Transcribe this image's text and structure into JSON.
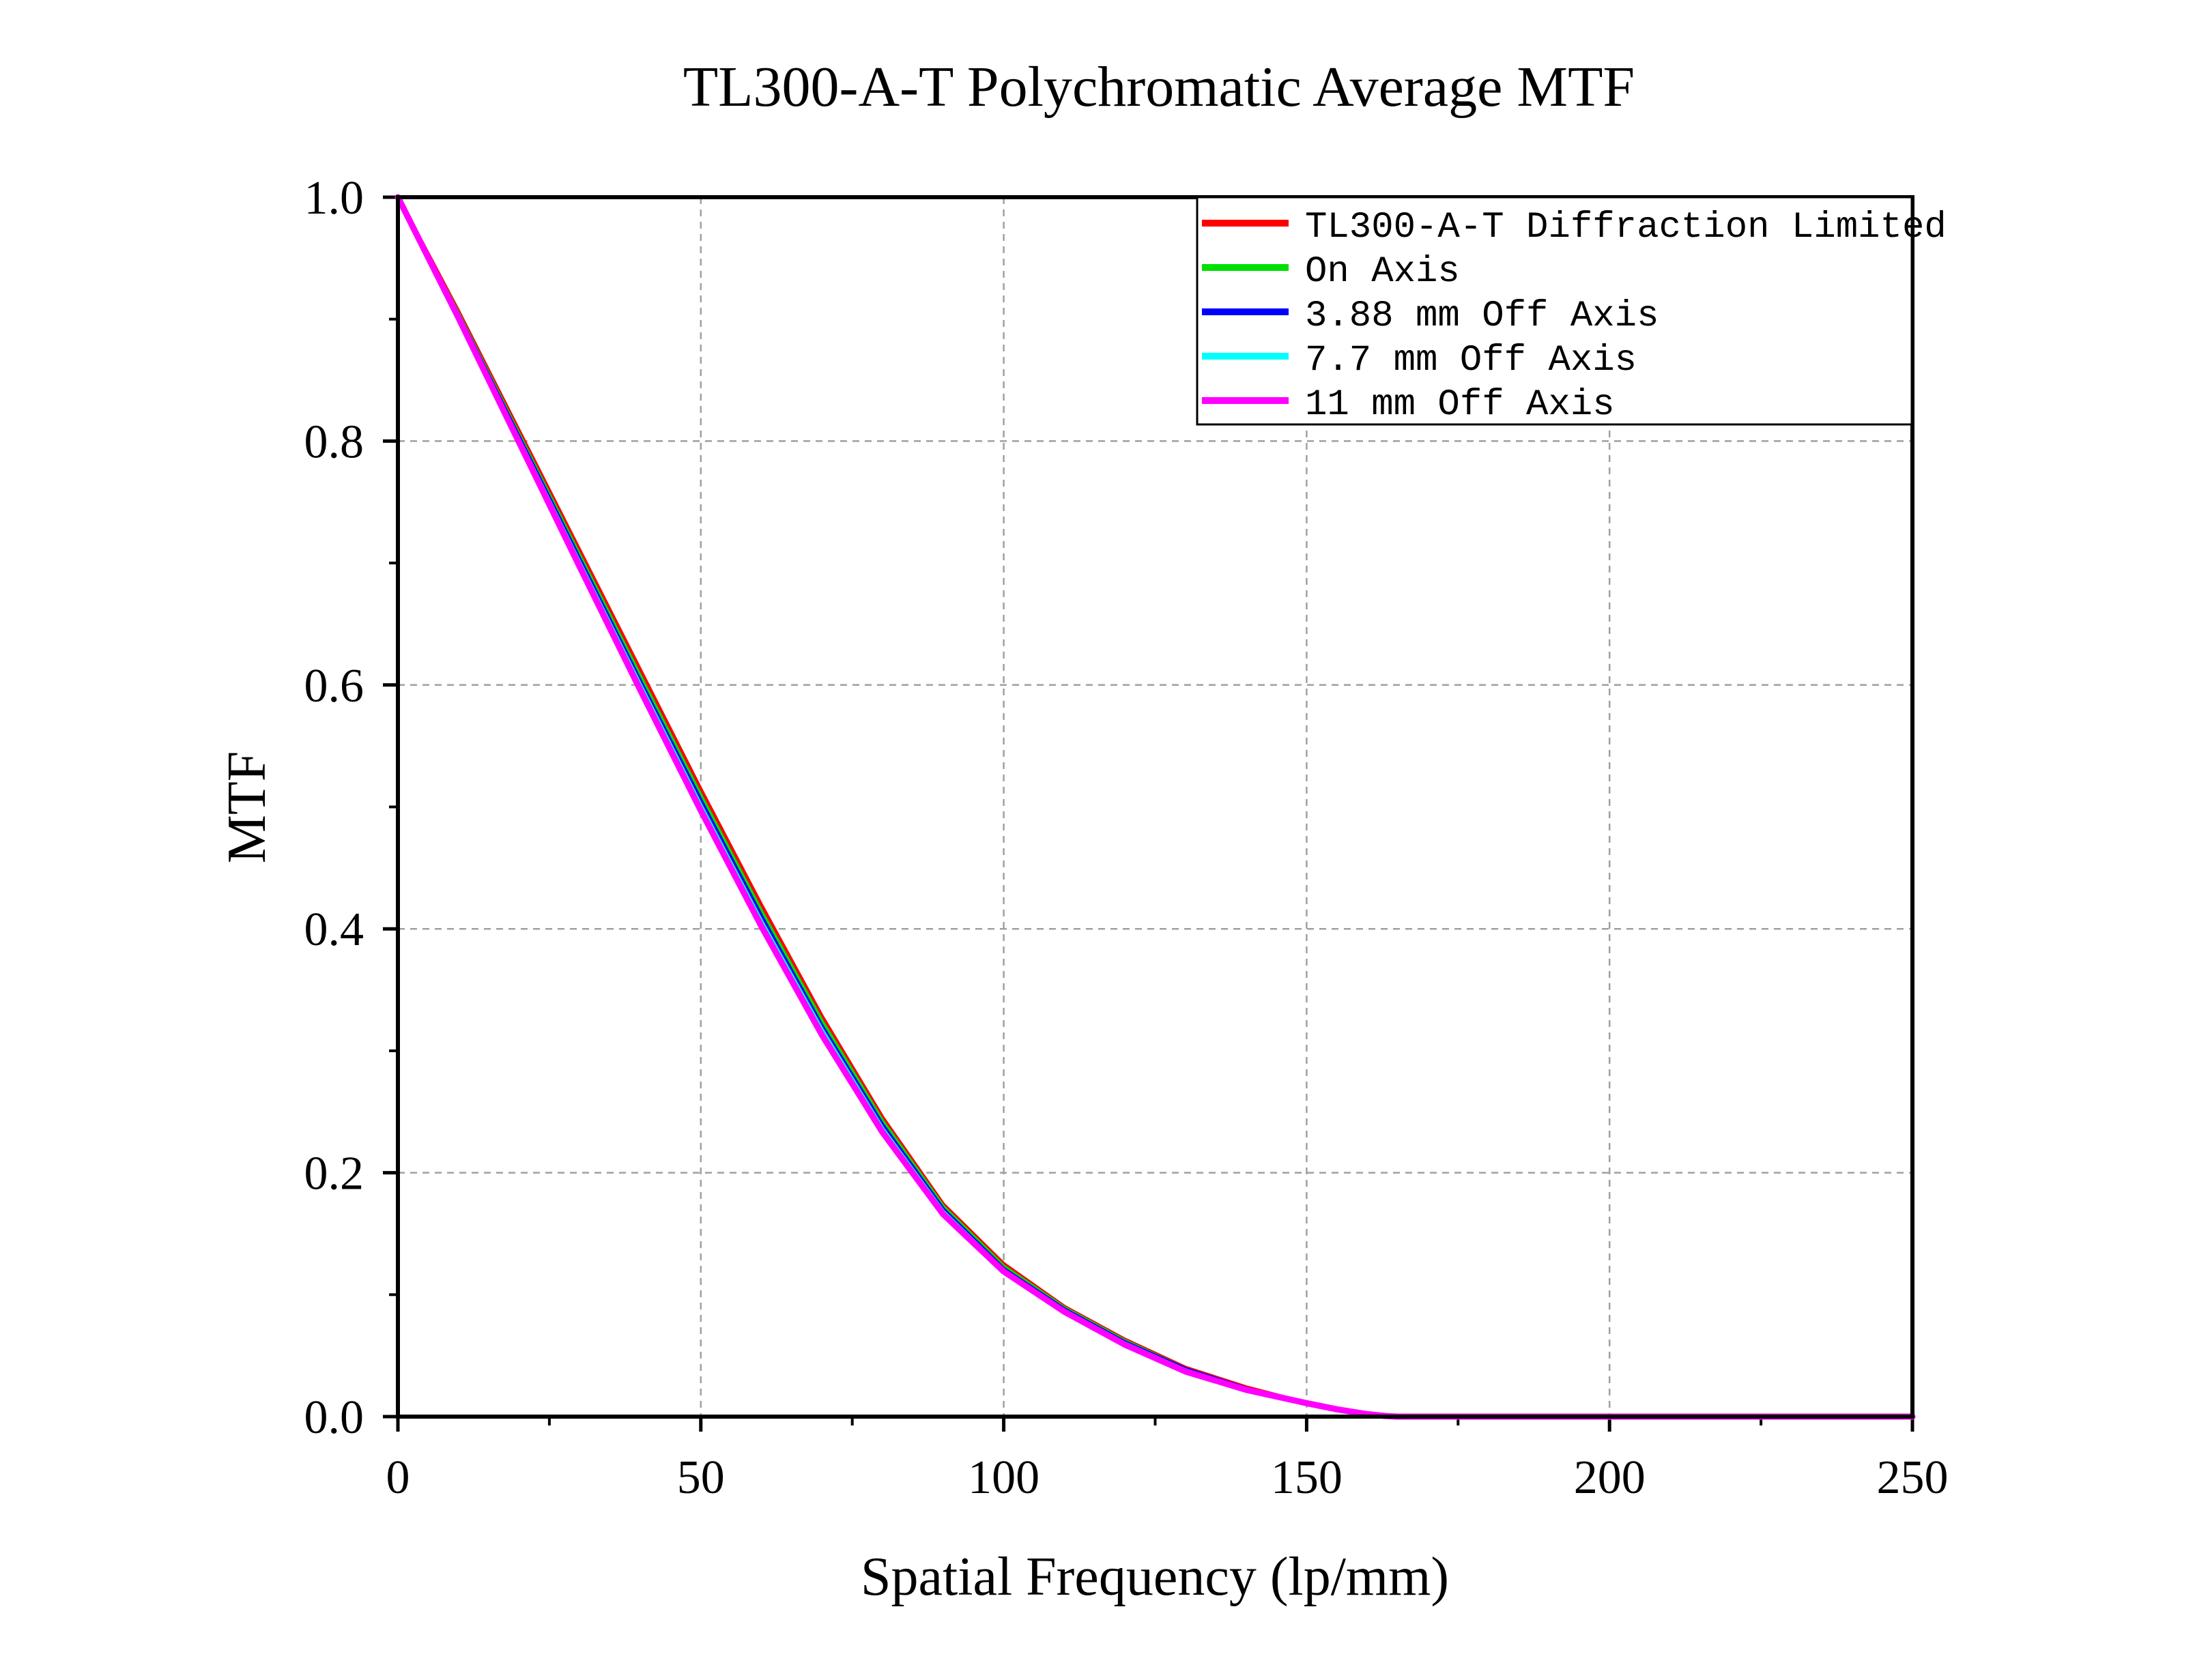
{
  "chart_data": {
    "type": "line",
    "title": "TL300-A-T Polychromatic Average MTF",
    "xlabel": "Spatial Frequency (lp/mm)",
    "ylabel": "MTF",
    "xlim": [
      0,
      250
    ],
    "ylim": [
      0,
      1.0
    ],
    "xticks": [
      "0",
      "50",
      "100",
      "150",
      "200",
      "250"
    ],
    "yticks": [
      "0.0",
      "0.2",
      "0.4",
      "0.6",
      "0.8",
      "1.0"
    ],
    "grid": true,
    "legend_position": "top-right",
    "series": [
      {
        "name": "TL300-A-T Diffraction Limited",
        "color": "#ff0000",
        "x": [
          0,
          10,
          20,
          30,
          40,
          50,
          60,
          70,
          80,
          90,
          100,
          110,
          120,
          130,
          140,
          150,
          155,
          160,
          163,
          165,
          170,
          200,
          250
        ],
        "y": [
          1.0,
          0.906,
          0.808,
          0.71,
          0.612,
          0.514,
          0.419,
          0.328,
          0.245,
          0.174,
          0.125,
          0.09,
          0.063,
          0.04,
          0.024,
          0.011,
          0.006,
          0.002,
          0.0005,
          0.0,
          0.0,
          0.0,
          0.0
        ]
      },
      {
        "name": "On Axis",
        "color": "#00e000",
        "x": [
          0,
          10,
          20,
          30,
          40,
          50,
          60,
          70,
          80,
          90,
          100,
          110,
          120,
          130,
          140,
          150,
          155,
          160,
          163,
          165,
          170,
          200,
          250
        ],
        "y": [
          1.0,
          0.904,
          0.805,
          0.706,
          0.607,
          0.509,
          0.414,
          0.324,
          0.242,
          0.172,
          0.123,
          0.089,
          0.062,
          0.039,
          0.023,
          0.011,
          0.006,
          0.002,
          0.0005,
          0.0,
          0.0,
          0.0,
          0.0
        ]
      },
      {
        "name": "3.88 mm Off Axis",
        "color": "#0000ff",
        "x": [
          0,
          10,
          20,
          30,
          40,
          50,
          60,
          70,
          80,
          90,
          100,
          110,
          120,
          130,
          140,
          150,
          155,
          160,
          163,
          165,
          170,
          200,
          250
        ],
        "y": [
          1.0,
          0.903,
          0.803,
          0.703,
          0.603,
          0.505,
          0.41,
          0.32,
          0.239,
          0.17,
          0.121,
          0.088,
          0.061,
          0.039,
          0.023,
          0.011,
          0.006,
          0.002,
          0.0005,
          0.0,
          0.0,
          0.0,
          0.0
        ]
      },
      {
        "name": "7.7 mm Off Axis",
        "color": "#00ffff",
        "x": [
          0,
          10,
          20,
          30,
          40,
          50,
          60,
          70,
          80,
          90,
          100,
          110,
          120,
          130,
          140,
          150,
          155,
          160,
          163,
          165,
          170,
          200,
          250
        ],
        "y": [
          1.0,
          0.902,
          0.801,
          0.7,
          0.6,
          0.501,
          0.406,
          0.317,
          0.236,
          0.168,
          0.12,
          0.087,
          0.06,
          0.038,
          0.022,
          0.011,
          0.006,
          0.002,
          0.0005,
          0.0,
          0.0,
          0.0,
          0.0
        ]
      },
      {
        "name": "11 mm Off Axis",
        "color": "#ff00ff",
        "x": [
          0,
          10,
          20,
          30,
          40,
          50,
          60,
          70,
          80,
          90,
          100,
          110,
          120,
          130,
          140,
          150,
          155,
          160,
          163,
          165,
          170,
          200,
          250
        ],
        "y": [
          1.0,
          0.901,
          0.799,
          0.697,
          0.596,
          0.497,
          0.402,
          0.313,
          0.233,
          0.166,
          0.119,
          0.086,
          0.059,
          0.037,
          0.022,
          0.011,
          0.006,
          0.002,
          0.0005,
          0.0,
          0.0,
          0.0,
          0.0
        ]
      }
    ]
  }
}
